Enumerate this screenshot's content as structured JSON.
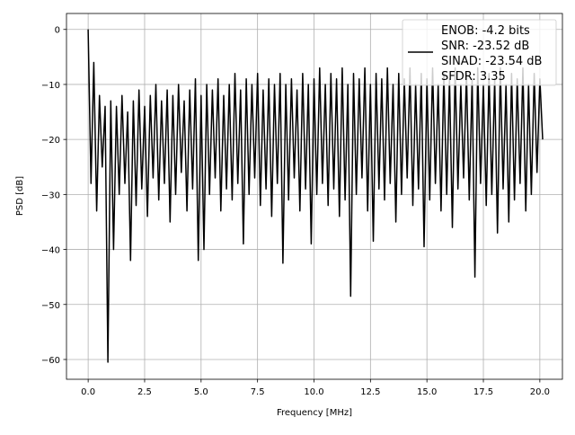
{
  "chart_data": {
    "type": "line",
    "title": "",
    "xlabel": "Frequency [MHz]",
    "ylabel": "PSD [dB]",
    "xlim": [
      -0.96,
      21.0
    ],
    "ylim": [
      -63.6,
      2.9
    ],
    "grid": true,
    "x_ticks": [
      "0.0",
      "2.5",
      "5.0",
      "7.5",
      "10.0",
      "12.5",
      "15.0",
      "17.5",
      "20.0"
    ],
    "y_ticks": [
      "0",
      "−10",
      "−20",
      "−30",
      "−40",
      "−50",
      "−60"
    ],
    "line_color": "#000000",
    "legend": {
      "placement": "top-right",
      "lines": [
        "ENOB: -4.2 bits",
        "SNR: -23.52 dB",
        "SINAD: -23.54 dB",
        "SFDR: 3.35"
      ]
    },
    "x_step": 0.125,
    "values": [
      0,
      -28,
      -6,
      -33,
      -12,
      -25,
      -14,
      -60.5,
      -13,
      -40,
      -14,
      -30,
      -12,
      -28,
      -15,
      -42,
      -13,
      -32,
      -11,
      -29,
      -14,
      -34,
      -12,
      -27,
      -10,
      -31,
      -13,
      -28,
      -11,
      -35,
      -12,
      -30,
      -10,
      -26,
      -13,
      -33,
      -11,
      -29,
      -9,
      -42,
      -12,
      -40,
      -10,
      -30,
      -11,
      -27,
      -9,
      -33,
      -12,
      -29,
      -10,
      -31,
      -8,
      -28,
      -11,
      -39,
      -9,
      -30,
      -10,
      -27,
      -8,
      -32,
      -11,
      -29,
      -9,
      -34,
      -10,
      -28,
      -8,
      -42.5,
      -10,
      -31,
      -9,
      -27,
      -11,
      -33,
      -8,
      -29,
      -10,
      -39,
      -9,
      -30,
      -7,
      -28,
      -10,
      -32,
      -8,
      -29,
      -9,
      -34,
      -7,
      -31,
      -10,
      -48.5,
      -8,
      -30,
      -9,
      -27,
      -7,
      -33,
      -10,
      -38.5,
      -8,
      -29,
      -9,
      -31,
      -7,
      -28,
      -10,
      -35,
      -8,
      -30,
      -9,
      -27,
      -7,
      -32,
      -10,
      -29,
      -8,
      -39.5,
      -9,
      -31,
      -7,
      -28,
      -10,
      -33,
      -8,
      -30,
      -9,
      -36,
      -7,
      -29,
      -10,
      -27,
      -8,
      -31,
      -9,
      -45,
      -7,
      -28,
      -10,
      -32,
      -8,
      -30,
      -9,
      -37,
      -7,
      -29,
      -10,
      -35,
      -8,
      -31,
      -9,
      -28,
      -7,
      -33,
      -10,
      -30,
      -8,
      -26,
      -9,
      -20
    ]
  }
}
